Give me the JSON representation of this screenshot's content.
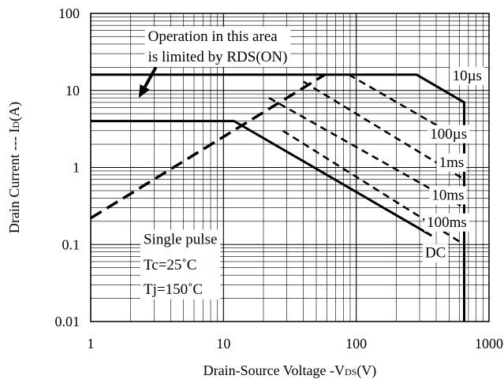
{
  "chart_data": {
    "type": "line",
    "title": "",
    "xlabel": "Drain-Source Voltage -VDS(V)",
    "xlabel_parts": [
      "Drain-Source Voltage -V",
      "DS",
      "(V)"
    ],
    "ylabel": "Drain Current --- ID(A)",
    "ylabel_parts": [
      "Drain Current --- I",
      "D",
      "(A)"
    ],
    "x_scale": "log",
    "y_scale": "log",
    "xlim": [
      1,
      1000
    ],
    "ylim": [
      0.01,
      100
    ],
    "x_ticks": [
      1,
      10,
      100,
      1000
    ],
    "x_tick_labels": [
      "1",
      "10",
      "100",
      "1000"
    ],
    "y_ticks": [
      0.01,
      0.1,
      1,
      10,
      100
    ],
    "y_tick_labels": [
      "0.01",
      "0.1",
      "1",
      "10",
      "100"
    ],
    "grid": true,
    "series": [
      {
        "name": "10µs",
        "style": "solid",
        "width": 3,
        "x": [
          1,
          285,
          650,
          650
        ],
        "y": [
          16,
          16,
          7,
          0.01
        ]
      },
      {
        "name": "DC",
        "style": "solid",
        "width": 3,
        "x": [
          1,
          12,
          370
        ],
        "y": [
          4,
          4,
          0.13
        ]
      },
      {
        "name": "RDS(ON) limit",
        "style": "dashed",
        "width": 3.5,
        "x": [
          1,
          58
        ],
        "y": [
          0.22,
          16
        ]
      },
      {
        "name": "100µs",
        "style": "dashed",
        "width": 2.5,
        "x": [
          88,
          650
        ],
        "y": [
          16,
          2.2
        ]
      },
      {
        "name": "1ms",
        "style": "dashed",
        "width": 2.5,
        "x": [
          40,
          650
        ],
        "y": [
          13,
          0.7
        ]
      },
      {
        "name": "10ms",
        "style": "dashed",
        "width": 2.5,
        "x": [
          22,
          650
        ],
        "y": [
          8,
          0.3
        ]
      },
      {
        "name": "100ms",
        "style": "dashed",
        "width": 2.5,
        "x": [
          28,
          650
        ],
        "y": [
          3,
          0.1
        ]
      }
    ],
    "curve_labels": [
      {
        "text": "10µs",
        "x": 530,
        "y": 16
      },
      {
        "text": "100µs",
        "x": 360,
        "y": 2.8
      },
      {
        "text": "1ms",
        "x": 420,
        "y": 1.2
      },
      {
        "text": "10ms",
        "x": 370,
        "y": 0.45
      },
      {
        "text": "100ms",
        "x": 340,
        "y": 0.2
      },
      {
        "text": "DC",
        "x": 330,
        "y": 0.08
      }
    ],
    "annotation_area": {
      "lines": [
        "Operation in this area",
        "is limited by RDS(ON)"
      ],
      "text_x": 2.7,
      "y": [
        52,
        28
      ],
      "arrow_from": [
        3.1,
        20
      ],
      "arrow_to": [
        2.3,
        8
      ]
    },
    "annotation_conditions": {
      "lines": [
        "Single pulse",
        "Tc=25˚C",
        "Tj=150˚C"
      ],
      "x": 2.5,
      "y": [
        0.12,
        0.056,
        0.027
      ]
    }
  }
}
